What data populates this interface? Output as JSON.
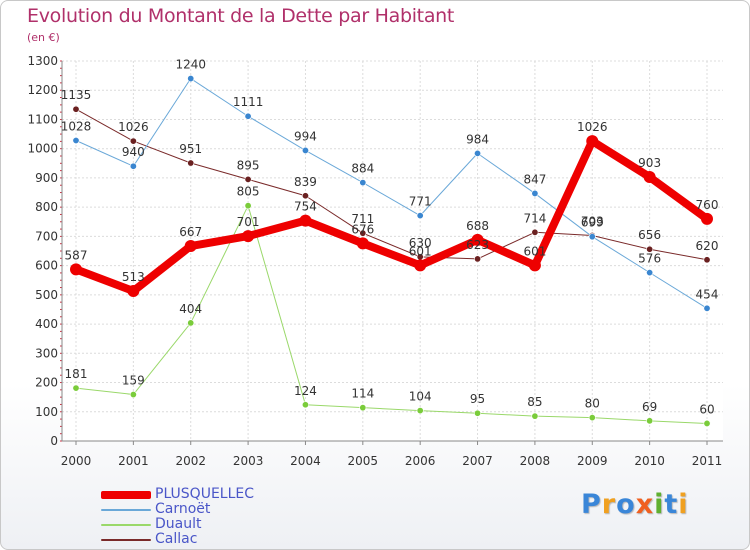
{
  "title": "Evolution du Montant de la Dette par Habitant",
  "subtitle": "(en €)",
  "logo": {
    "letters": [
      "P",
      "r",
      "o",
      "x",
      "i",
      "t",
      "i"
    ],
    "colors": [
      "#3a86d8",
      "#f0a020",
      "#3a86d8",
      "#f06020",
      "#60b030",
      "#3a86d8",
      "#f0a020"
    ]
  },
  "chart_data": {
    "type": "line",
    "x": [
      "2000",
      "2001",
      "2002",
      "2003",
      "2004",
      "2005",
      "2006",
      "2007",
      "2008",
      "2009",
      "2010",
      "2011"
    ],
    "ylim": [
      0,
      1300
    ],
    "yticks": [
      "0",
      "100",
      "200",
      "300",
      "400",
      "500",
      "600",
      "700",
      "800",
      "900",
      "1000",
      "1100",
      "1200",
      "1300"
    ],
    "grid": true,
    "legend_position": "bottom-left",
    "series": [
      {
        "name": "Callac",
        "color": "#7a2a2a",
        "marker": "#6a2020",
        "width": 1,
        "values": [
          1135,
          1026,
          951,
          895,
          839,
          711,
          630,
          623,
          714,
          703,
          656,
          620
        ],
        "labels": [
          "1135",
          "1026",
          "951",
          "895",
          "839",
          "711",
          "630",
          "623",
          "714",
          "703",
          "656",
          "620"
        ]
      },
      {
        "name": "Carnoët",
        "color": "#6aa8d8",
        "marker": "#3a86d0",
        "width": 1,
        "values": [
          1028,
          940,
          1240,
          1111,
          994,
          884,
          771,
          984,
          847,
          699,
          576,
          454
        ],
        "labels": [
          "1028",
          "940",
          "1240",
          "1111",
          "994",
          "884",
          "771",
          "984",
          "847",
          "699",
          "576",
          "454"
        ]
      },
      {
        "name": "Duault",
        "color": "#9ad86a",
        "marker": "#7acc3a",
        "width": 1,
        "values": [
          181,
          159,
          404,
          805,
          124,
          114,
          104,
          95,
          85,
          80,
          69,
          60
        ],
        "labels": [
          "181",
          "159",
          "404",
          "805",
          "124",
          "114",
          "104",
          "95",
          "85",
          "80",
          "69",
          "60"
        ]
      },
      {
        "name": "PLUSQUELLEC",
        "color": "#ee0000",
        "marker": "#ee0000",
        "width": 8,
        "values": [
          587,
          513,
          667,
          701,
          754,
          676,
          601,
          688,
          601,
          1026,
          903,
          760
        ],
        "labels": [
          "587",
          "513",
          "667",
          "701",
          "754",
          "676",
          "601",
          "688",
          "601",
          "1026",
          "903",
          "760"
        ]
      }
    ],
    "legend": [
      "PLUSQUELLEC",
      "Carnoët",
      "Duault",
      "Callac"
    ]
  }
}
